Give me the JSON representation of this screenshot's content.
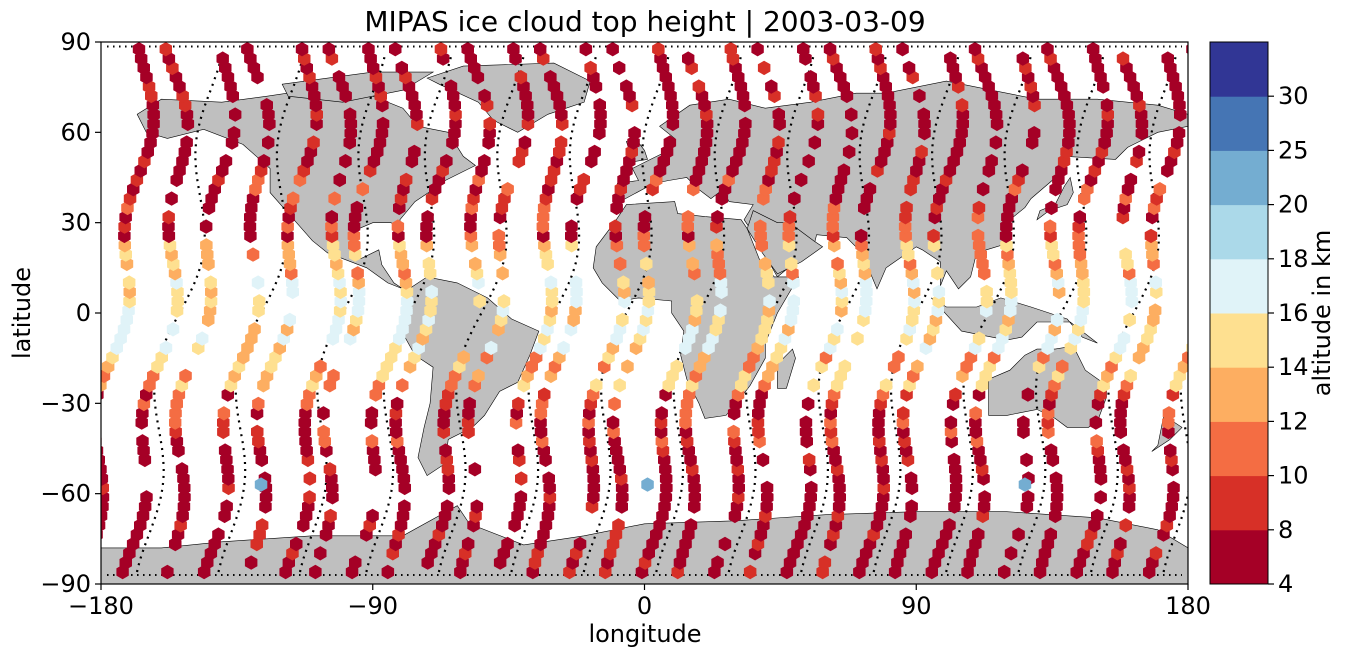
{
  "chart_data": {
    "type": "scatter",
    "title": "MIPAS ice cloud top height | 2003-03-09",
    "xlabel": "longitude",
    "ylabel": "latitude",
    "xlim": [
      -180,
      180
    ],
    "ylim": [
      -90,
      90
    ],
    "xticks": [
      -180,
      -90,
      0,
      90,
      180
    ],
    "yticks": [
      -90,
      -60,
      -30,
      0,
      30,
      60,
      90
    ],
    "xtick_labels": [
      "−180",
      "−90",
      "0",
      "90",
      "180"
    ],
    "ytick_labels": [
      "−90",
      "−60",
      "−30",
      "0",
      "30",
      "60",
      "90"
    ],
    "grid": false,
    "background_map": "world coastlines, land filled grey",
    "colorbar": {
      "label": "altitude in km",
      "boundaries": [
        4,
        8,
        10,
        12,
        14,
        16,
        18,
        20,
        25,
        30
      ],
      "tick_labels": [
        "4",
        "8",
        "10",
        "12",
        "14",
        "16",
        "18",
        "20",
        "25",
        "30"
      ],
      "colors": [
        "#a50026",
        "#d73027",
        "#f46d43",
        "#fdae61",
        "#fee090",
        "#e0f3f8",
        "#abd9e9",
        "#74add1",
        "#4575b4",
        "#313695"
      ],
      "colormap": "RdYlBu"
    },
    "colors": {
      "land": "#bfbfbf",
      "coast": "#000000",
      "track": "#000000"
    },
    "tracks": [
      {
        "lon": -172,
        "lat_amp": 88,
        "color_profile": "default"
      },
      {
        "lon": -145,
        "lat_amp": 88,
        "color_profile": "default"
      },
      {
        "lon": -118,
        "lat_amp": 88,
        "color_profile": "default"
      },
      {
        "lon": -96,
        "lat_amp": 88,
        "color_profile": "default"
      },
      {
        "lon": -72,
        "lat_amp": 88,
        "color_profile": "default"
      },
      {
        "lon": -48,
        "lat_amp": 88,
        "color_profile": "default"
      },
      {
        "lon": -24,
        "lat_amp": 88,
        "color_profile": "default"
      },
      {
        "lon": 0,
        "lat_amp": 88,
        "color_profile": "default"
      },
      {
        "lon": 24,
        "lat_amp": 88,
        "color_profile": "default"
      },
      {
        "lon": 48,
        "lat_amp": 88,
        "color_profile": "default"
      },
      {
        "lon": 72,
        "lat_amp": 88,
        "color_profile": "default"
      },
      {
        "lon": 96,
        "lat_amp": 88,
        "color_profile": "default"
      },
      {
        "lon": 120,
        "lat_amp": 88,
        "color_profile": "default"
      },
      {
        "lon": 144,
        "lat_amp": 88,
        "color_profile": "default"
      },
      {
        "lon": 168,
        "lat_amp": 88,
        "color_profile": "default"
      }
    ],
    "extra_points": [
      {
        "lon": -127,
        "lat": -57,
        "value": 22
      },
      {
        "lon": 1,
        "lat": -57,
        "value": 22
      },
      {
        "lon": 126,
        "lat": -57,
        "value": 22
      }
    ]
  }
}
